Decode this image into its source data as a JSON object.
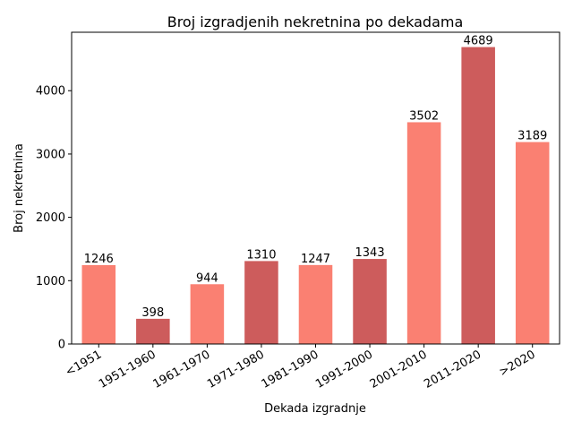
{
  "chart_data": {
    "type": "bar",
    "title": "Broj izgradjenih nekretnina po dekadama",
    "xlabel": "Dekada izgradnje",
    "ylabel": "Broj nekretnina",
    "categories": [
      "<1951",
      "1951-1960",
      "1961-1970",
      "1971-1980",
      "1981-1990",
      "1991-2000",
      "2001-2010",
      "2011-2020",
      ">2020"
    ],
    "values": [
      1246,
      398,
      944,
      1310,
      1247,
      1343,
      3502,
      4689,
      3189
    ],
    "bar_colors": [
      "#fa8072",
      "#cd5c5c",
      "#fa8072",
      "#cd5c5c",
      "#fa8072",
      "#cd5c5c",
      "#fa8072",
      "#cd5c5c",
      "#fa8072"
    ],
    "ylim": [
      0,
      4923
    ],
    "yticks": [
      0,
      1000,
      2000,
      3000,
      4000
    ],
    "grid": false,
    "legend": false
  }
}
